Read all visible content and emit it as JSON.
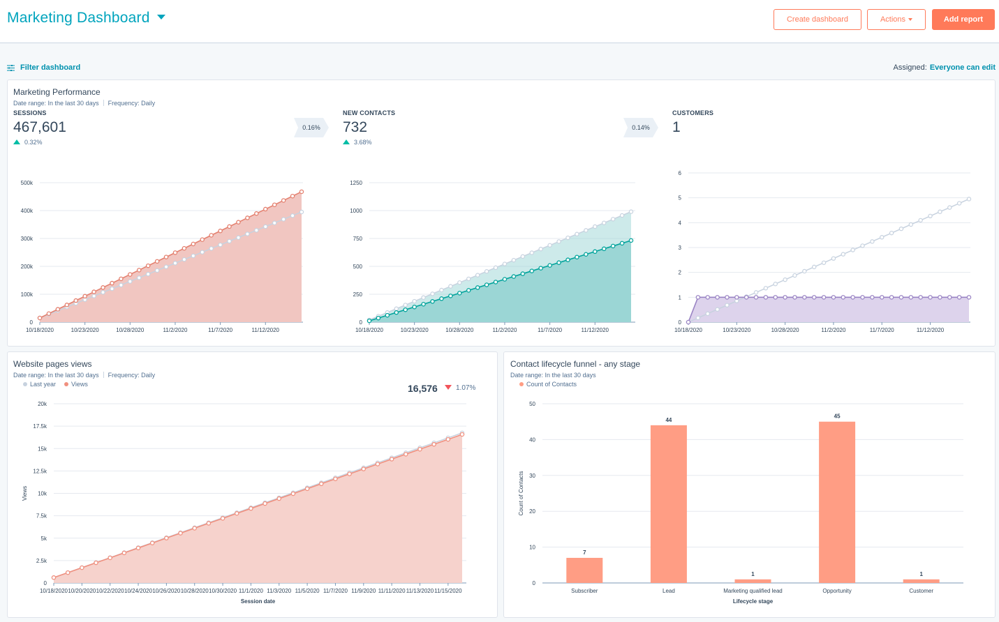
{
  "header": {
    "title": "Marketing Dashboard",
    "create_dashboard": "Create dashboard",
    "actions": "Actions",
    "add_report": "Add report"
  },
  "filterbar": {
    "filter_label": "Filter dashboard",
    "assigned_label": "Assigned:",
    "assigned_value": "Everyone can edit"
  },
  "colors": {
    "accent_teal": "#00a4bd",
    "accent_orange": "#ff7a59",
    "sessions_line": "#e4806f",
    "sessions_fill": "#f1c6c1",
    "contacts_line": "#00a39b",
    "contacts_fill": "#9bd6d5",
    "customers_line": "#9a84c4",
    "customers_fill": "#ddd3ec",
    "last_year": "#c7d2df",
    "views_line": "#f0907f",
    "views_fill": "#f6d2cc",
    "bar": "#ff9d84",
    "up": "#00bda5",
    "down": "#f2545b"
  },
  "performance": {
    "title": "Marketing Performance",
    "date_range": "Date range: In the last 30 days",
    "frequency": "Frequency: Daily",
    "kpis": [
      {
        "label": "SESSIONS",
        "value": "467,601",
        "change": "0.32%",
        "direction": "up"
      },
      {
        "label": "NEW CONTACTS",
        "value": "732",
        "change": "3.68%",
        "direction": "up"
      },
      {
        "label": "CUSTOMERS",
        "value": "1"
      }
    ],
    "conversions": [
      "0.16%",
      "0.14%"
    ]
  },
  "website_views": {
    "title": "Website pages views",
    "date_range": "Date range: In the last 30 days",
    "frequency": "Frequency: Daily",
    "legend": [
      "Last year",
      "Views"
    ],
    "total": "16,576",
    "change": "1.07%",
    "direction": "down"
  },
  "funnel": {
    "title": "Contact lifecycle funnel - any stage",
    "date_range": "Date range: In the last 30 days",
    "legend": [
      "Count of Contacts"
    ]
  },
  "chart_data": [
    {
      "type": "area",
      "kpi": "SESSIONS",
      "x_ticks": [
        "10/18/2020",
        "10/23/2020",
        "10/28/2020",
        "11/2/2020",
        "11/7/2020",
        "11/12/2020"
      ],
      "y_ticks": [
        "0",
        "100k",
        "200k",
        "300k",
        "400k",
        "500k"
      ],
      "ylim": [
        0,
        500000
      ],
      "points": 30,
      "series": [
        {
          "values_range": [
            15000,
            467601
          ]
        },
        {
          "values_range": [
            15000,
            395000
          ],
          "style": "dotted"
        }
      ]
    },
    {
      "type": "area",
      "kpi": "NEW CONTACTS",
      "x_ticks": [
        "10/18/2020",
        "10/23/2020",
        "10/28/2020",
        "11/2/2020",
        "11/7/2020",
        "11/12/2020"
      ],
      "y_ticks": [
        "0",
        "250",
        "500",
        "750",
        "1000",
        "1250"
      ],
      "ylim": [
        0,
        1250
      ],
      "points": 30,
      "series": [
        {
          "values_range": [
            12,
            732
          ]
        },
        {
          "values_range": [
            20,
            990
          ],
          "style": "dotted"
        }
      ]
    },
    {
      "type": "area",
      "kpi": "CUSTOMERS",
      "x_ticks": [
        "10/18/2020",
        "10/23/2020",
        "10/28/2020",
        "11/2/2020",
        "11/7/2020",
        "11/12/2020"
      ],
      "y_ticks": [
        "0",
        "1",
        "2",
        "3",
        "4",
        "5",
        "6"
      ],
      "ylim": [
        0,
        6
      ],
      "points": 30,
      "series": [
        {
          "first_value": 0,
          "rest_value": 1
        },
        {
          "values_range": [
            0,
            4.95
          ],
          "style": "dotted"
        }
      ]
    },
    {
      "type": "area",
      "title": "Website pages views",
      "xlabel": "Session date",
      "ylabel": "Views",
      "x_ticks": [
        "10/18/2020",
        "10/20/2020",
        "10/22/2020",
        "10/24/2020",
        "10/26/2020",
        "10/28/2020",
        "10/30/2020",
        "11/1/2020",
        "11/3/2020",
        "11/5/2020",
        "11/7/2020",
        "11/9/2020",
        "11/11/2020",
        "11/13/2020",
        "11/15/2020"
      ],
      "y_ticks": [
        "0",
        "2.5k",
        "5k",
        "7.5k",
        "10k",
        "12.5k",
        "15k",
        "17.5k",
        "20k"
      ],
      "ylim": [
        0,
        20000
      ],
      "points": 30,
      "series": [
        {
          "name": "Views",
          "values_range": [
            600,
            16576
          ]
        },
        {
          "name": "Last year",
          "values_range": [
            600,
            16750
          ]
        }
      ]
    },
    {
      "type": "bar",
      "title": "Contact lifecycle funnel - any stage",
      "xlabel": "Lifecycle stage",
      "ylabel": "Count of Contacts",
      "categories": [
        "Subscriber",
        "Lead",
        "Marketing qualified lead",
        "Opportunity",
        "Customer"
      ],
      "values": [
        7,
        44,
        1,
        45,
        1
      ],
      "y_ticks": [
        "0",
        "10",
        "20",
        "30",
        "40",
        "50"
      ],
      "ylim": [
        0,
        50
      ],
      "series_name": "Count of Contacts"
    }
  ]
}
